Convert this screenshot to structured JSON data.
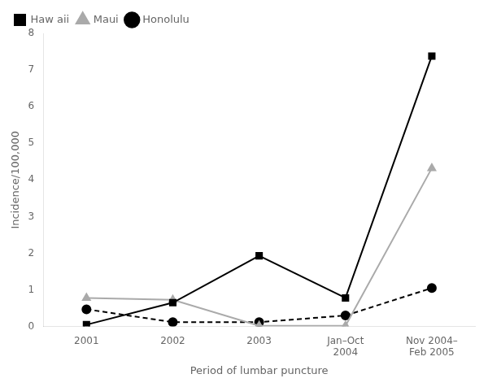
{
  "chart_data": {
    "type": "line",
    "categories": [
      "2001",
      "2002",
      "2003",
      "Jan–Oct\n2004",
      "Nov 2004–\nFeb 2005"
    ],
    "series": [
      {
        "name": "Haw aii",
        "color": "#000000",
        "marker": "square",
        "line_style": "solid",
        "values": [
          0.05,
          0.65,
          1.93,
          0.78,
          7.38
        ]
      },
      {
        "name": "Maui",
        "color": "#aaaaaa",
        "marker": "triangle",
        "line_style": "solid",
        "values": [
          0.78,
          0.73,
          0.02,
          0.02,
          4.32
        ]
      },
      {
        "name": "Honolulu",
        "color": "#000000",
        "marker": "circle",
        "line_style": "dashed",
        "values": [
          0.47,
          0.12,
          0.12,
          0.3,
          1.05
        ]
      }
    ],
    "xlabel": "Period of lumbar puncture",
    "ylabel": "Incidence/100,000",
    "ylim": [
      0,
      8
    ],
    "yticks": [
      0,
      1,
      2,
      3,
      4,
      5,
      6,
      7,
      8
    ],
    "grid": false,
    "legend": "upper left"
  }
}
